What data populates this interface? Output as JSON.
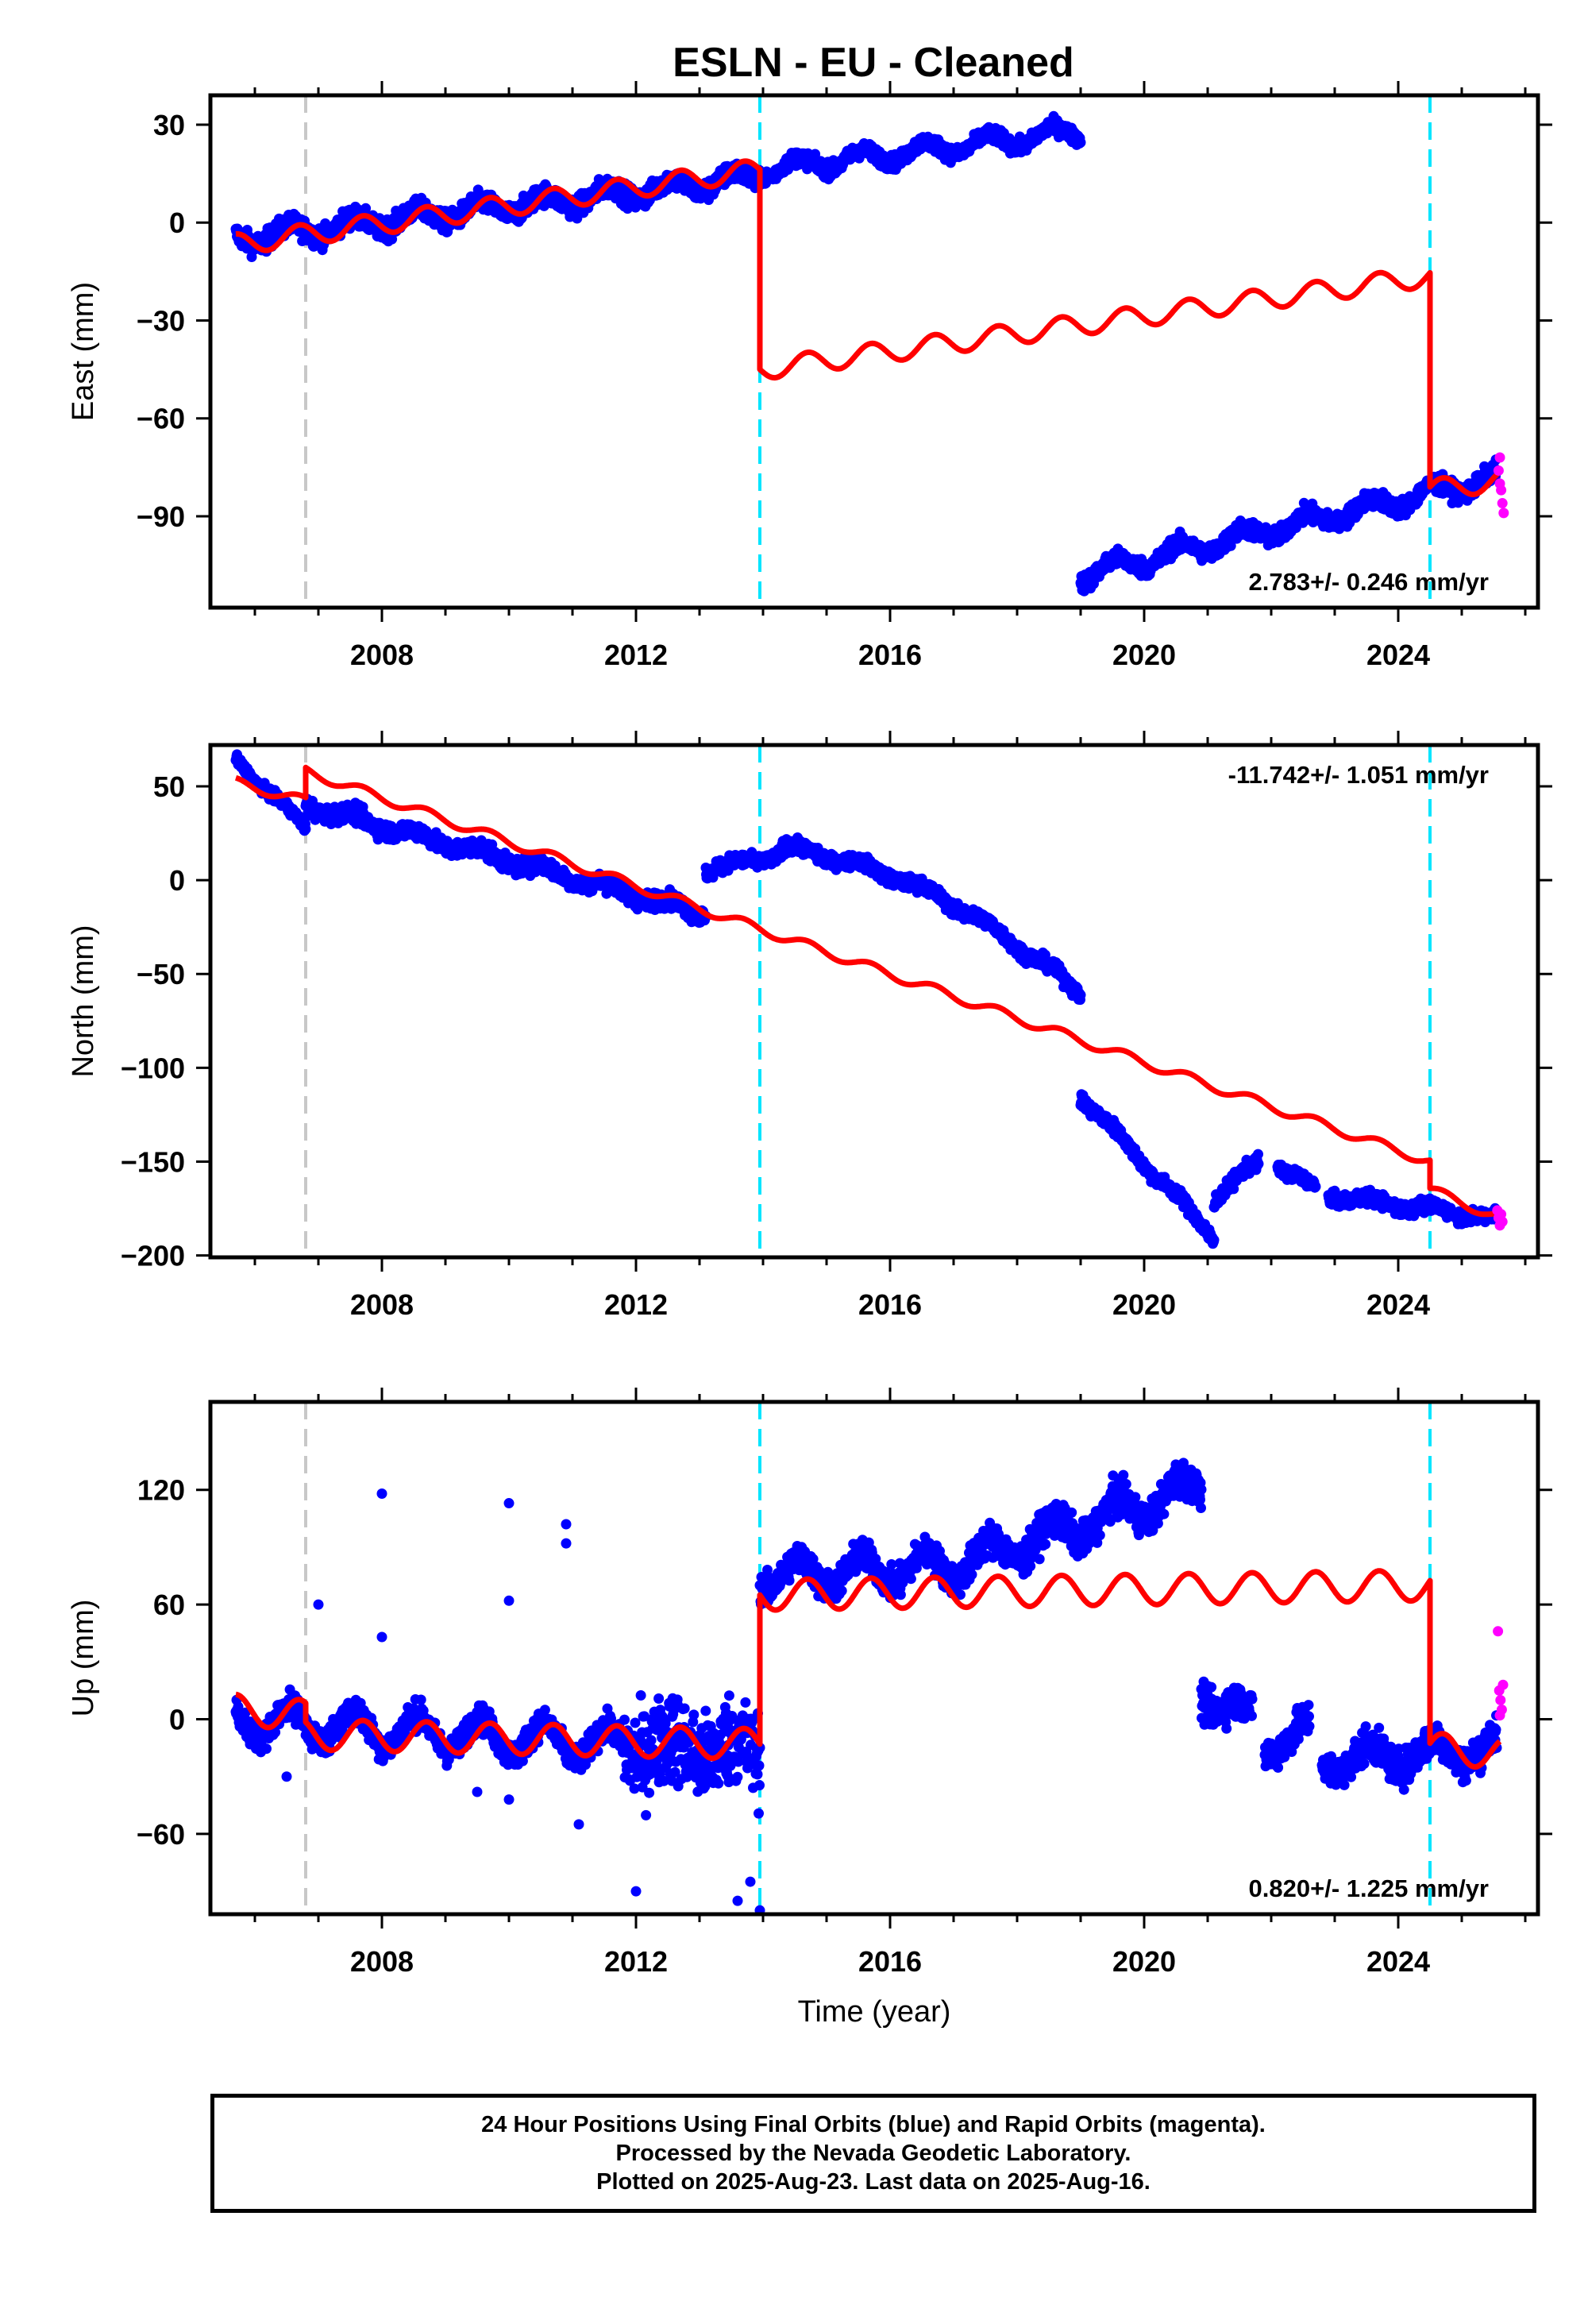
{
  "title": "ESLN  - EU - Cleaned",
  "colors": {
    "final": "#0000ff",
    "rapid": "#ff00ff",
    "model": "#ff0000",
    "equipment_change": "#c8c8c8",
    "event": "#00e5ff"
  },
  "chart_data": [
    {
      "type": "scatter",
      "component": "east",
      "ylabel": "East (mm)",
      "xlabel": "",
      "xlim": [
        2005.3,
        2026.2
      ],
      "ylim": [
        -118,
        39
      ],
      "xticks": [
        2008,
        2012,
        2016,
        2020,
        2024
      ],
      "xtick_labels": [
        "2008",
        "2012",
        "2016",
        "2020",
        "2024"
      ],
      "yticks": [
        30,
        0,
        -30,
        -60,
        -90
      ],
      "ytick_labels": [
        "30",
        "0",
        "−30",
        "−60",
        "−90"
      ],
      "rate_label": "2.783+/- 0.246 mm/yr",
      "rate_position": "bottom-right",
      "series": [
        {
          "role": "final",
          "segments": [
            {
              "x0": 2005.7,
              "x1": 2013.95,
              "y0": -5,
              "y1": 14,
              "noise": 3.5,
              "seasonal": 2.5
            },
            {
              "x0": 2013.95,
              "x1": 2019.0,
              "y0": 16,
              "y1": 28,
              "noise": 2.5,
              "seasonal": 2.5
            },
            {
              "x0": 2019.0,
              "x1": 2025.55,
              "y0": -108,
              "y1": -78,
              "noise": 3,
              "seasonal": 2.5
            }
          ]
        },
        {
          "role": "rapid",
          "points": [
            [
              2025.58,
              -76
            ],
            [
              2025.6,
              -80
            ],
            [
              2025.62,
              -82
            ],
            [
              2025.64,
              -86
            ],
            [
              2025.66,
              -89
            ],
            [
              2025.6,
              -72
            ]
          ]
        },
        {
          "role": "model",
          "pieces": [
            {
              "x0": 2005.7,
              "x1": 2013.95,
              "y0": -6.7,
              "y1": 16.3
            },
            {
              "x0": 2013.95,
              "x1": 2024.5,
              "y0": -45,
              "y1": -16.4
            },
            {
              "x0": 2024.5,
              "x1": 2025.6,
              "y0": -82,
              "y1": -79
            }
          ],
          "amplitude": 3.2
        }
      ],
      "reference_lines": [
        {
          "x": 2006.8,
          "kind": "equipment_change"
        },
        {
          "x": 2013.95,
          "kind": "event"
        },
        {
          "x": 2024.5,
          "kind": "event"
        }
      ]
    },
    {
      "type": "scatter",
      "component": "north",
      "ylabel": "North (mm)",
      "xlabel": "",
      "xlim": [
        2005.3,
        2026.2
      ],
      "ylim": [
        -201,
        72
      ],
      "xticks": [
        2008,
        2012,
        2016,
        2020,
        2024
      ],
      "xtick_labels": [
        "2008",
        "2012",
        "2016",
        "2020",
        "2024"
      ],
      "yticks": [
        50,
        0,
        -50,
        -100,
        -150,
        -200
      ],
      "ytick_labels": [
        "50",
        "0",
        "−50",
        "−100",
        "−150",
        "−200"
      ],
      "rate_label": "-11.742+/- 1.051 mm/yr",
      "rate_position": "top-right",
      "series": [
        {
          "role": "final",
          "segments": [
            {
              "x0": 2005.7,
              "x1": 2006.8,
              "y0": 64,
              "y1": 28,
              "noise": 3,
              "seasonal": 1.5
            },
            {
              "x0": 2006.8,
              "x1": 2013.1,
              "y0": 40,
              "y1": -18,
              "noise": 5,
              "seasonal": 2.5
            },
            {
              "x0": 2013.1,
              "x1": 2014.3,
              "y0": 5,
              "y1": 14,
              "noise": 4,
              "seasonal": 2
            },
            {
              "x0": 2014.3,
              "x1": 2019.0,
              "y0": 18,
              "y1": -60,
              "noise": 4,
              "seasonal": 2,
              "curve": 14
            },
            {
              "x0": 2019.0,
              "x1": 2021.1,
              "y0": -115,
              "y1": -190,
              "noise": 4,
              "seasonal": 2
            },
            {
              "x0": 2021.1,
              "x1": 2021.8,
              "y0": -170,
              "y1": -150,
              "noise": 4,
              "seasonal": 2
            },
            {
              "x0": 2022.1,
              "x1": 2022.7,
              "y0": -152,
              "y1": -165,
              "noise": 4,
              "seasonal": 2
            },
            {
              "x0": 2022.9,
              "x1": 2025.55,
              "y0": -168,
              "y1": -180,
              "noise": 4,
              "seasonal": 2
            }
          ]
        },
        {
          "role": "rapid",
          "points": [
            [
              2025.56,
              -176
            ],
            [
              2025.58,
              -180
            ],
            [
              2025.6,
              -184
            ],
            [
              2025.62,
              -178
            ],
            [
              2025.64,
              -182
            ]
          ]
        },
        {
          "role": "model",
          "pieces": [
            {
              "x0": 2005.7,
              "x1": 2006.8,
              "y0": 52,
              "y1": 42
            },
            {
              "x0": 2006.8,
              "x1": 2024.5,
              "y0": 58,
              "y1": -150
            },
            {
              "x0": 2024.5,
              "x1": 2025.6,
              "y0": -165,
              "y1": -180
            }
          ],
          "amplitude": 2.5
        }
      ],
      "reference_lines": [
        {
          "x": 2006.8,
          "kind": "equipment_change"
        },
        {
          "x": 2013.95,
          "kind": "event"
        },
        {
          "x": 2024.5,
          "kind": "event"
        }
      ]
    },
    {
      "type": "scatter",
      "component": "up",
      "ylabel": "Up (mm)",
      "xlabel": "Time (year)",
      "xlim": [
        2005.3,
        2026.2
      ],
      "ylim": [
        -102,
        166
      ],
      "xticks": [
        2008,
        2012,
        2016,
        2020,
        2024
      ],
      "xtick_labels": [
        "2008",
        "2012",
        "2016",
        "2020",
        "2024"
      ],
      "yticks": [
        120,
        60,
        0,
        -60
      ],
      "ytick_labels": [
        "120",
        "60",
        "0",
        "−60"
      ],
      "rate_label": "0.820+/- 1.225 mm/yr",
      "rate_position": "bottom-right",
      "series": [
        {
          "role": "final",
          "segments": [
            {
              "x0": 2005.7,
              "x1": 2011.8,
              "y0": 0,
              "y1": -14,
              "noise": 8,
              "seasonal": 9
            },
            {
              "x0": 2011.8,
              "x1": 2013.95,
              "y0": -14,
              "y1": -16,
              "noise": 26,
              "seasonal": 6
            },
            {
              "x0": 2013.95,
              "x1": 2017.0,
              "y0": 75,
              "y1": 80,
              "noise": 9,
              "seasonal": 8
            },
            {
              "x0": 2017.0,
              "x1": 2020.9,
              "y0": 80,
              "y1": 122,
              "noise": 10,
              "seasonal": 8
            },
            {
              "x0": 2020.9,
              "x1": 2021.7,
              "y0": 12,
              "y1": 2,
              "noise": 10,
              "seasonal": 5
            },
            {
              "x0": 2021.9,
              "x1": 2022.6,
              "y0": -15,
              "y1": -5,
              "noise": 10,
              "seasonal": 5
            },
            {
              "x0": 2022.8,
              "x1": 2025.55,
              "y0": -22,
              "y1": -15,
              "noise": 10,
              "seasonal": 7
            }
          ]
        },
        {
          "role": "rapid",
          "points": [
            [
              2025.57,
              46
            ],
            [
              2025.59,
              15
            ],
            [
              2025.61,
              10
            ],
            [
              2025.63,
              5
            ],
            [
              2025.65,
              18
            ],
            [
              2025.6,
              2
            ]
          ]
        },
        {
          "role": "model",
          "pieces": [
            {
              "x0": 2005.7,
              "x1": 2006.8,
              "y0": 5,
              "y1": 2
            },
            {
              "x0": 2006.8,
              "x1": 2013.95,
              "y0": -8,
              "y1": -13
            },
            {
              "x0": 2013.95,
              "x1": 2024.5,
              "y0": 65,
              "y1": 70
            },
            {
              "x0": 2024.5,
              "x1": 2025.6,
              "y0": -15,
              "y1": -18
            }
          ],
          "amplitude": 8
        }
      ],
      "outliers": [
        [
          2007.0,
          60
        ],
        [
          2008.0,
          118
        ],
        [
          2008.0,
          43
        ],
        [
          2010.0,
          113
        ],
        [
          2010.0,
          62
        ],
        [
          2010.0,
          -42
        ],
        [
          2010.9,
          102
        ],
        [
          2010.9,
          92
        ],
        [
          2009.5,
          -38
        ],
        [
          2006.5,
          -30
        ],
        [
          2011.1,
          -55
        ],
        [
          2012.0,
          -90
        ],
        [
          2013.6,
          -95
        ],
        [
          2013.95,
          -100
        ],
        [
          2013.8,
          -85
        ]
      ],
      "reference_lines": [
        {
          "x": 2006.8,
          "kind": "equipment_change"
        },
        {
          "x": 2013.95,
          "kind": "event"
        },
        {
          "x": 2024.5,
          "kind": "event"
        }
      ]
    }
  ],
  "footer": {
    "line1": "24 Hour Positions Using Final Orbits (blue) and Rapid Orbits (magenta).",
    "line2": "Processed by the Nevada Geodetic Laboratory.",
    "line3": "Plotted on 2025-Aug-23. Last data on 2025-Aug-16."
  }
}
